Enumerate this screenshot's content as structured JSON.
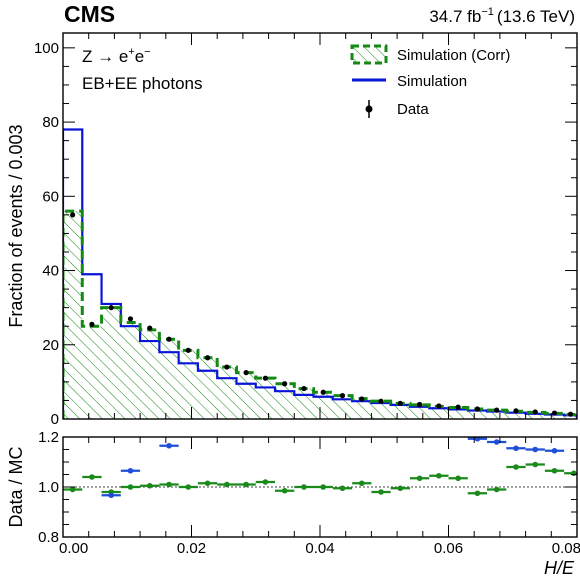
{
  "header": {
    "experiment": "CMS",
    "lumi_value": "34.7 fb",
    "lumi_exp": "−1",
    "lumi_energy": "(13.6 TeV)"
  },
  "annotations": {
    "process_base": "Z → e",
    "process_sup1": "+",
    "process_mid": "e",
    "process_sup2": "−",
    "selection": "EB+EE photons"
  },
  "legend": {
    "corr": "Simulation (Corr)",
    "sim": "Simulation",
    "data": "Data"
  },
  "colors": {
    "sim": "#0a14d8",
    "corr": "#138a13",
    "data": "#000000",
    "ratio_sim": "#1f4fd8",
    "ratio_corr": "#1a8a1a"
  },
  "chart_data": {
    "type": "bar",
    "xlabel": "H/E",
    "ylabel": "Fraction of events / 0.003",
    "ratio_ylabel": "Data / MC",
    "xlim": [
      0,
      0.08
    ],
    "ylim": [
      0,
      104
    ],
    "ratio_ylim": [
      0.8,
      1.2
    ],
    "x_ticks": [
      "0.00",
      "0.02",
      "0.04",
      "0.06",
      "0.08"
    ],
    "y_ticks": [
      "0",
      "20",
      "40",
      "60",
      "80",
      "100"
    ],
    "ratio_ticks": [
      "0.8",
      "1.0",
      "1.2"
    ],
    "bin_edges": [
      0.0,
      0.003,
      0.006,
      0.009,
      0.012,
      0.015,
      0.018,
      0.021,
      0.024,
      0.027,
      0.03,
      0.033,
      0.036,
      0.039,
      0.042,
      0.045,
      0.048,
      0.051,
      0.054,
      0.057,
      0.06,
      0.063,
      0.066,
      0.069,
      0.072,
      0.075,
      0.078,
      0.08
    ],
    "series": [
      {
        "name": "Simulation",
        "values": [
          78,
          39,
          31,
          25,
          21,
          18,
          15,
          13,
          11,
          9.5,
          8.5,
          7.5,
          6.5,
          6.0,
          5.3,
          4.8,
          4.3,
          3.8,
          3.3,
          2.9,
          2.6,
          2.3,
          2.0,
          1.7,
          1.4,
          1.2,
          1.0
        ]
      },
      {
        "name": "Simulation (Corr)",
        "values": [
          56,
          25,
          30,
          26,
          24,
          21.5,
          18.5,
          16.5,
          14,
          12.5,
          11,
          9.5,
          8.2,
          7.2,
          6.3,
          5.5,
          4.8,
          4.2,
          3.8,
          3.4,
          3.1,
          2.7,
          2.4,
          2.1,
          1.8,
          1.5,
          1.2
        ]
      },
      {
        "name": "Data",
        "values": [
          55,
          25.5,
          30,
          27,
          24.5,
          21.5,
          18.5,
          16.5,
          14,
          12.5,
          11,
          9.5,
          8.2,
          7.2,
          6.3,
          5.4,
          4.8,
          4.2,
          3.9,
          3.5,
          3.2,
          2.7,
          2.4,
          2.2,
          1.9,
          1.6,
          1.3
        ]
      }
    ],
    "ratio": {
      "sim": [
        {
          "x": 0.0105,
          "y": 1.065
        },
        {
          "x": 0.0165,
          "y": 1.165
        },
        {
          "x": 0.0075,
          "y": 0.967
        },
        {
          "x": 0.0645,
          "y": 1.193
        },
        {
          "x": 0.0675,
          "y": 1.18
        },
        {
          "x": 0.0705,
          "y": 1.155
        },
        {
          "x": 0.0735,
          "y": 1.15
        },
        {
          "x": 0.0765,
          "y": 1.145
        }
      ],
      "corr": [
        {
          "x": 0.0015,
          "y": 0.99
        },
        {
          "x": 0.0045,
          "y": 1.04
        },
        {
          "x": 0.0075,
          "y": 0.98
        },
        {
          "x": 0.0105,
          "y": 1.0
        },
        {
          "x": 0.0135,
          "y": 1.005
        },
        {
          "x": 0.0165,
          "y": 1.01
        },
        {
          "x": 0.0195,
          "y": 1.0
        },
        {
          "x": 0.0225,
          "y": 1.015
        },
        {
          "x": 0.0255,
          "y": 1.01
        },
        {
          "x": 0.0285,
          "y": 1.01
        },
        {
          "x": 0.0315,
          "y": 1.02
        },
        {
          "x": 0.0345,
          "y": 0.985
        },
        {
          "x": 0.0375,
          "y": 1.0
        },
        {
          "x": 0.0405,
          "y": 1.0
        },
        {
          "x": 0.0435,
          "y": 0.995
        },
        {
          "x": 0.0465,
          "y": 1.015
        },
        {
          "x": 0.0495,
          "y": 0.98
        },
        {
          "x": 0.0525,
          "y": 0.995
        },
        {
          "x": 0.0555,
          "y": 1.035
        },
        {
          "x": 0.0585,
          "y": 1.045
        },
        {
          "x": 0.0615,
          "y": 1.035
        },
        {
          "x": 0.0645,
          "y": 0.975
        },
        {
          "x": 0.0675,
          "y": 0.99
        },
        {
          "x": 0.0705,
          "y": 1.08
        },
        {
          "x": 0.0735,
          "y": 1.09
        },
        {
          "x": 0.0765,
          "y": 1.065
        },
        {
          "x": 0.0795,
          "y": 1.055
        }
      ]
    }
  }
}
